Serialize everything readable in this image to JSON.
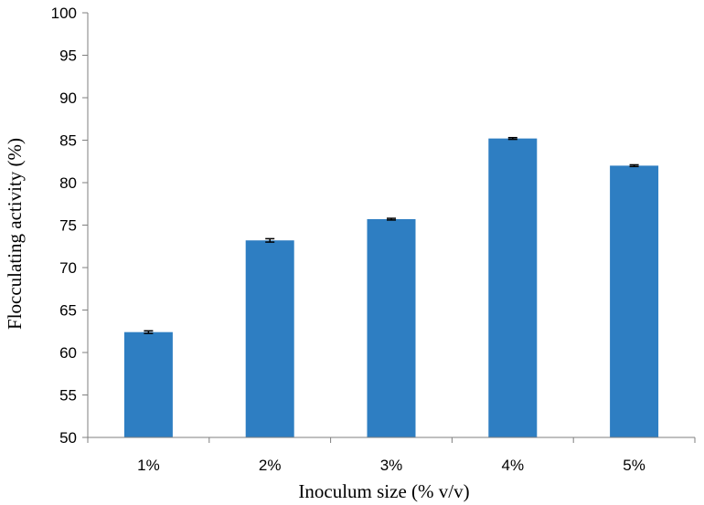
{
  "chart_data": {
    "type": "bar",
    "categories": [
      "1%",
      "2%",
      "3%",
      "4%",
      "5%"
    ],
    "values": [
      62.4,
      73.2,
      75.7,
      85.2,
      82.0
    ],
    "errors": [
      0.15,
      0.2,
      0.1,
      0.1,
      0.1
    ],
    "xlabel": "Inoculum size (% v/v)",
    "ylabel": "Flocculating activity (%)",
    "ylim": [
      50,
      100
    ],
    "yticks": [
      "50",
      "55",
      "60",
      "65",
      "70",
      "75",
      "80",
      "85",
      "90",
      "95",
      "100"
    ],
    "grid": false,
    "bar_color": "#2E7EC2",
    "axis_color": "#7F7F7F",
    "error_bar_color": "#000000"
  }
}
